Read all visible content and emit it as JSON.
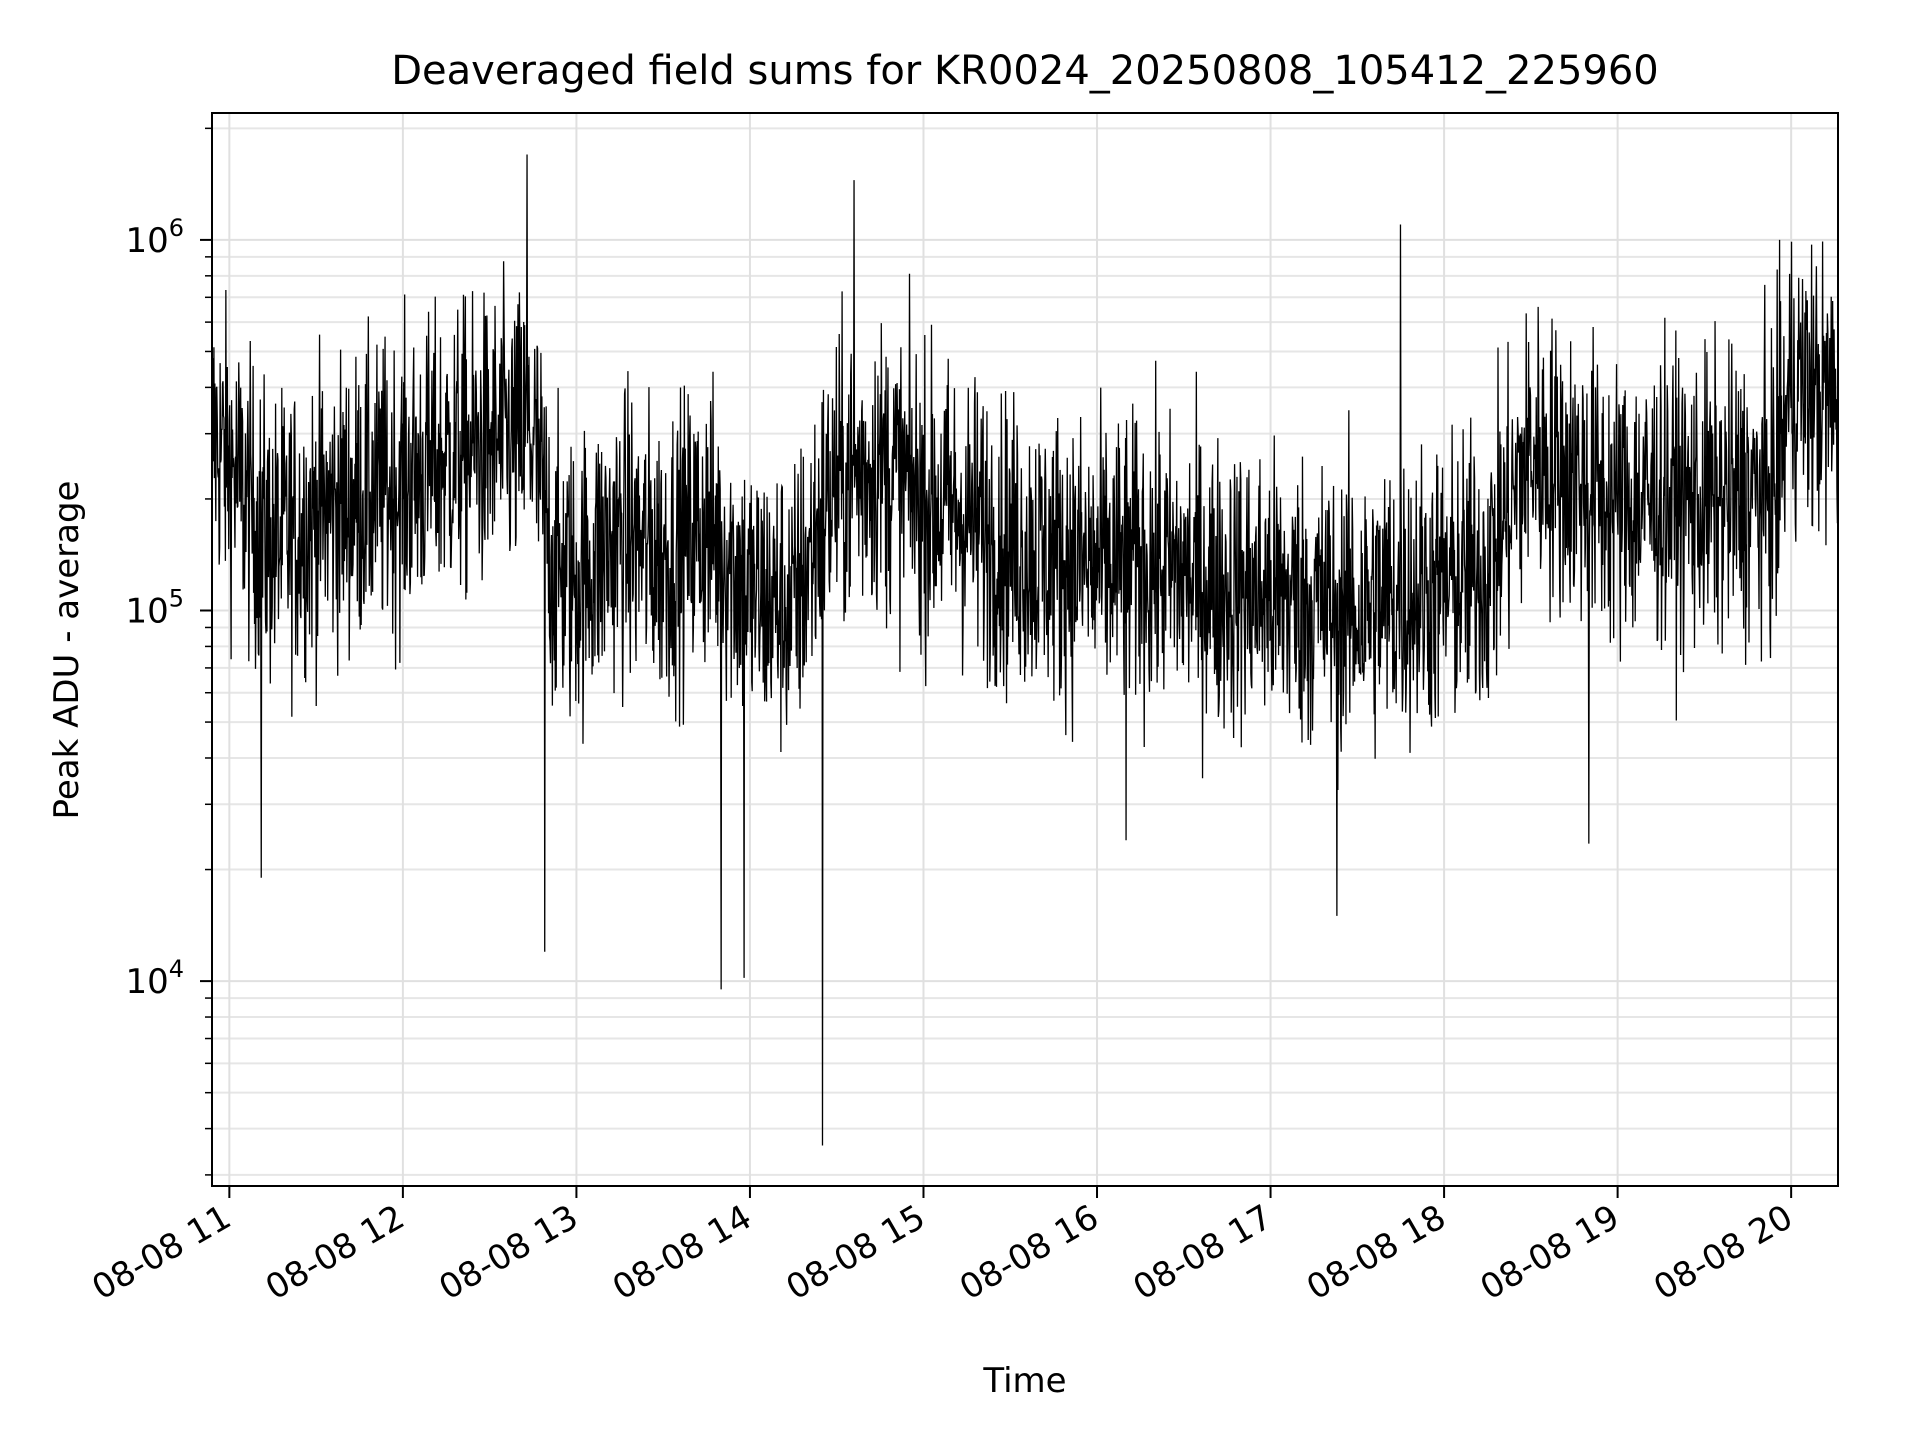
{
  "chart_data": {
    "type": "line",
    "title": "Deaveraged field sums for KR0024_20250808_105412_225960",
    "xlabel": "Time",
    "ylabel": "Peak ADU - average",
    "yscale": "log",
    "ylim": [
      2800,
      2200000
    ],
    "xlim_hours": [
      10.9,
      20.27
    ],
    "grid": true,
    "grid_minor": true,
    "legend": "none",
    "line_color": "#000000",
    "x_ticks": [
      {
        "hour": 11,
        "label": "08-08 11"
      },
      {
        "hour": 12,
        "label": "08-08 12"
      },
      {
        "hour": 13,
        "label": "08-08 13"
      },
      {
        "hour": 14,
        "label": "08-08 14"
      },
      {
        "hour": 15,
        "label": "08-08 15"
      },
      {
        "hour": 16,
        "label": "08-08 16"
      },
      {
        "hour": 17,
        "label": "08-08 17"
      },
      {
        "hour": 18,
        "label": "08-08 18"
      },
      {
        "hour": 19,
        "label": "08-08 19"
      },
      {
        "hour": 20,
        "label": "08-08 20"
      }
    ],
    "y_ticks": [
      {
        "value": 10000,
        "base": "10",
        "exp": "4"
      },
      {
        "value": 100000,
        "base": "10",
        "exp": "5"
      },
      {
        "value": 1000000,
        "base": "10",
        "exp": "6"
      }
    ],
    "series": [
      {
        "x": [
          "08-08 10:54",
          "08-08 11:00",
          "08-08 11:10",
          "08-08 11:15",
          "08-08 11:30",
          "08-08 11:45",
          "08-08 12:00",
          "08-08 12:15",
          "08-08 12:30",
          "08-08 12:45",
          "08-08 12:52",
          "08-08 13:00",
          "08-08 13:15",
          "08-08 13:30",
          "08-08 13:45",
          "08-08 13:55",
          "08-08 14:00",
          "08-08 14:15",
          "08-08 14:25",
          "08-08 14:30",
          "08-08 14:45",
          "08-08 15:00",
          "08-08 15:15",
          "08-08 15:30",
          "08-08 15:45",
          "08-08 16:00",
          "08-08 16:15",
          "08-08 16:30",
          "08-08 16:45",
          "08-08 17:00",
          "08-08 17:15",
          "08-08 17:30",
          "08-08 17:45",
          "08-08 18:00",
          "08-08 18:15",
          "08-08 18:30",
          "08-08 18:45",
          "08-08 19:00",
          "08-08 19:15",
          "08-08 19:30",
          "08-08 19:45",
          "08-08 19:55",
          "08-08 20:00",
          "08-08 20:10",
          "08-08 20:16"
        ],
        "y": [
          300000,
          250000,
          170000,
          150000,
          180000,
          200000,
          220000,
          260000,
          280000,
          300000,
          130000,
          120000,
          160000,
          140000,
          170000,
          130000,
          110000,
          100000,
          180000,
          220000,
          250000,
          200000,
          180000,
          150000,
          140000,
          130000,
          135000,
          125000,
          115000,
          110000,
          105000,
          100000,
          110000,
          115000,
          130000,
          270000,
          230000,
          190000,
          200000,
          195000,
          200000,
          210000,
          420000,
          380000,
          360000
        ],
        "spike_peaks": [
          {
            "x": "08-08 12:43",
            "y": 1700000
          },
          {
            "x": "08-08 14:36",
            "y": 1450000
          },
          {
            "x": "08-08 17:45",
            "y": 1100000
          },
          {
            "x": "08-08 19:56",
            "y": 1000000
          }
        ],
        "spike_troughs": [
          {
            "x": "08-08 11:11",
            "y": 19000
          },
          {
            "x": "08-08 12:49",
            "y": 12000
          },
          {
            "x": "08-08 13:50",
            "y": 9500
          },
          {
            "x": "08-08 13:58",
            "y": 10200
          },
          {
            "x": "08-08 14:25",
            "y": 3600
          },
          {
            "x": "08-08 16:10",
            "y": 24000
          },
          {
            "x": "08-08 17:23",
            "y": 15000
          },
          {
            "x": "08-08 18:50",
            "y": 23500
          }
        ]
      }
    ]
  }
}
